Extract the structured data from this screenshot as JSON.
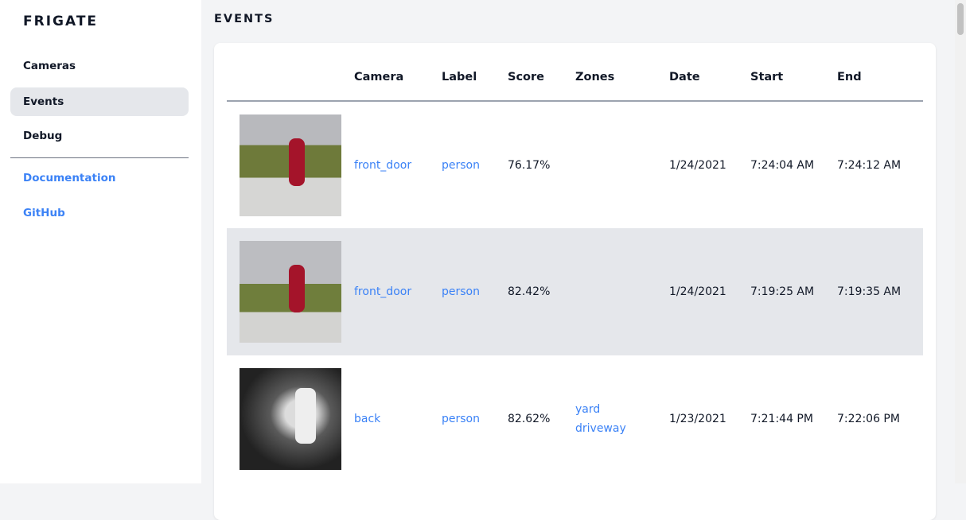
{
  "sidebar": {
    "brand": "FRIGATE",
    "items": [
      {
        "label": "Cameras"
      },
      {
        "label": "Events",
        "active": true
      },
      {
        "label": "Debug"
      }
    ],
    "links": [
      {
        "label": "Documentation"
      },
      {
        "label": "GitHub"
      }
    ]
  },
  "main": {
    "title": "EVENTS",
    "columns": [
      "",
      "Camera",
      "Label",
      "Score",
      "Zones",
      "Date",
      "Start",
      "End"
    ],
    "rows": [
      {
        "camera": "front_door",
        "label": "person",
        "score": "76.17%",
        "zones": [
          "",
          ""
        ],
        "date": "1/24/2021",
        "start": "7:24:04 AM",
        "end": "7:24:12 AM"
      },
      {
        "camera": "front_door",
        "label": "person",
        "score": "82.42%",
        "zones": [
          "",
          ""
        ],
        "date": "1/24/2021",
        "start": "7:19:25 AM",
        "end": "7:19:35 AM"
      },
      {
        "camera": "back",
        "label": "person",
        "score": "82.62%",
        "zones": [
          "yard",
          "driveway"
        ],
        "date": "1/23/2021",
        "start": "7:21:44 PM",
        "end": "7:22:06 PM"
      }
    ]
  },
  "colors": {
    "accent": "#3b82f6",
    "active_bg": "#e5e7eb"
  }
}
